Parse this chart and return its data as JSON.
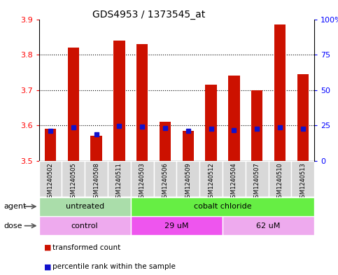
{
  "title": "GDS4953 / 1373545_at",
  "samples": [
    "GSM1240502",
    "GSM1240505",
    "GSM1240508",
    "GSM1240511",
    "GSM1240503",
    "GSM1240506",
    "GSM1240509",
    "GSM1240512",
    "GSM1240504",
    "GSM1240507",
    "GSM1240510",
    "GSM1240513"
  ],
  "transformed_counts": [
    3.59,
    3.82,
    3.57,
    3.84,
    3.83,
    3.61,
    3.585,
    3.715,
    3.74,
    3.7,
    3.885,
    3.745
  ],
  "percentile_values": [
    3.585,
    3.595,
    3.575,
    3.598,
    3.596,
    3.592,
    3.585,
    3.591,
    3.586,
    3.591,
    3.594,
    3.59
  ],
  "ymin": 3.5,
  "ymax": 3.9,
  "yticks": [
    3.5,
    3.6,
    3.7,
    3.8,
    3.9
  ],
  "right_yticks_pct": [
    0,
    25,
    50,
    75,
    100
  ],
  "bar_color": "#cc1100",
  "percentile_color": "#1111cc",
  "agent_groups": [
    {
      "label": "untreated",
      "start": 0,
      "end": 4,
      "color": "#aaddaa"
    },
    {
      "label": "cobalt chloride",
      "start": 4,
      "end": 12,
      "color": "#66ee44"
    }
  ],
  "dose_groups": [
    {
      "label": "control",
      "start": 0,
      "end": 4,
      "color": "#ee99ee"
    },
    {
      "label": "29 uM",
      "start": 4,
      "end": 8,
      "color": "#ee66ee"
    },
    {
      "label": "62 uM",
      "start": 8,
      "end": 12,
      "color": "#ee99ee"
    }
  ],
  "legend_tc": "transformed count",
  "legend_pr": "percentile rank within the sample",
  "agent_label": "agent",
  "dose_label": "dose",
  "bar_width": 0.5,
  "title_fontsize": 10,
  "label_fontsize": 8,
  "tick_fontsize": 8,
  "sample_fontsize": 6
}
